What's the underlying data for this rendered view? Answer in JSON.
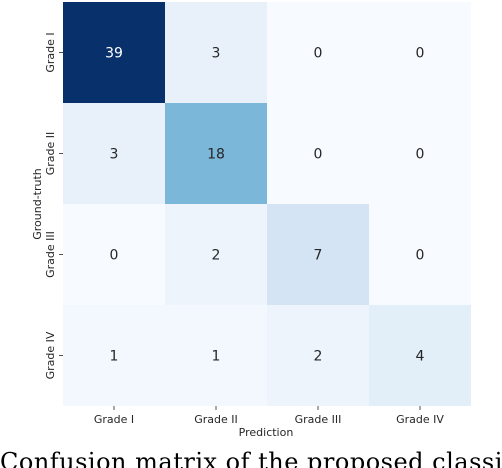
{
  "chart_data": {
    "type": "heatmap",
    "title": "",
    "xlabel": "Prediction",
    "ylabel": "Ground-truth",
    "x_categories": [
      "Grade I",
      "Grade II",
      "Grade III",
      "Grade IV"
    ],
    "y_categories": [
      "Grade I",
      "Grade II",
      "Grade III",
      "Grade IV"
    ],
    "values": [
      [
        39,
        3,
        0,
        0
      ],
      [
        3,
        18,
        0,
        0
      ],
      [
        0,
        2,
        7,
        0
      ],
      [
        1,
        1,
        2,
        4
      ]
    ],
    "colormap": "Blues",
    "vmin": 0,
    "vmax": 39,
    "colors": {
      "low": "#f7fbff",
      "high": "#08306b",
      "dark_text": "#262626",
      "light_text": "#ffffff"
    }
  },
  "caption": {
    "text": "Confusion matrix of the proposed classifi"
  }
}
